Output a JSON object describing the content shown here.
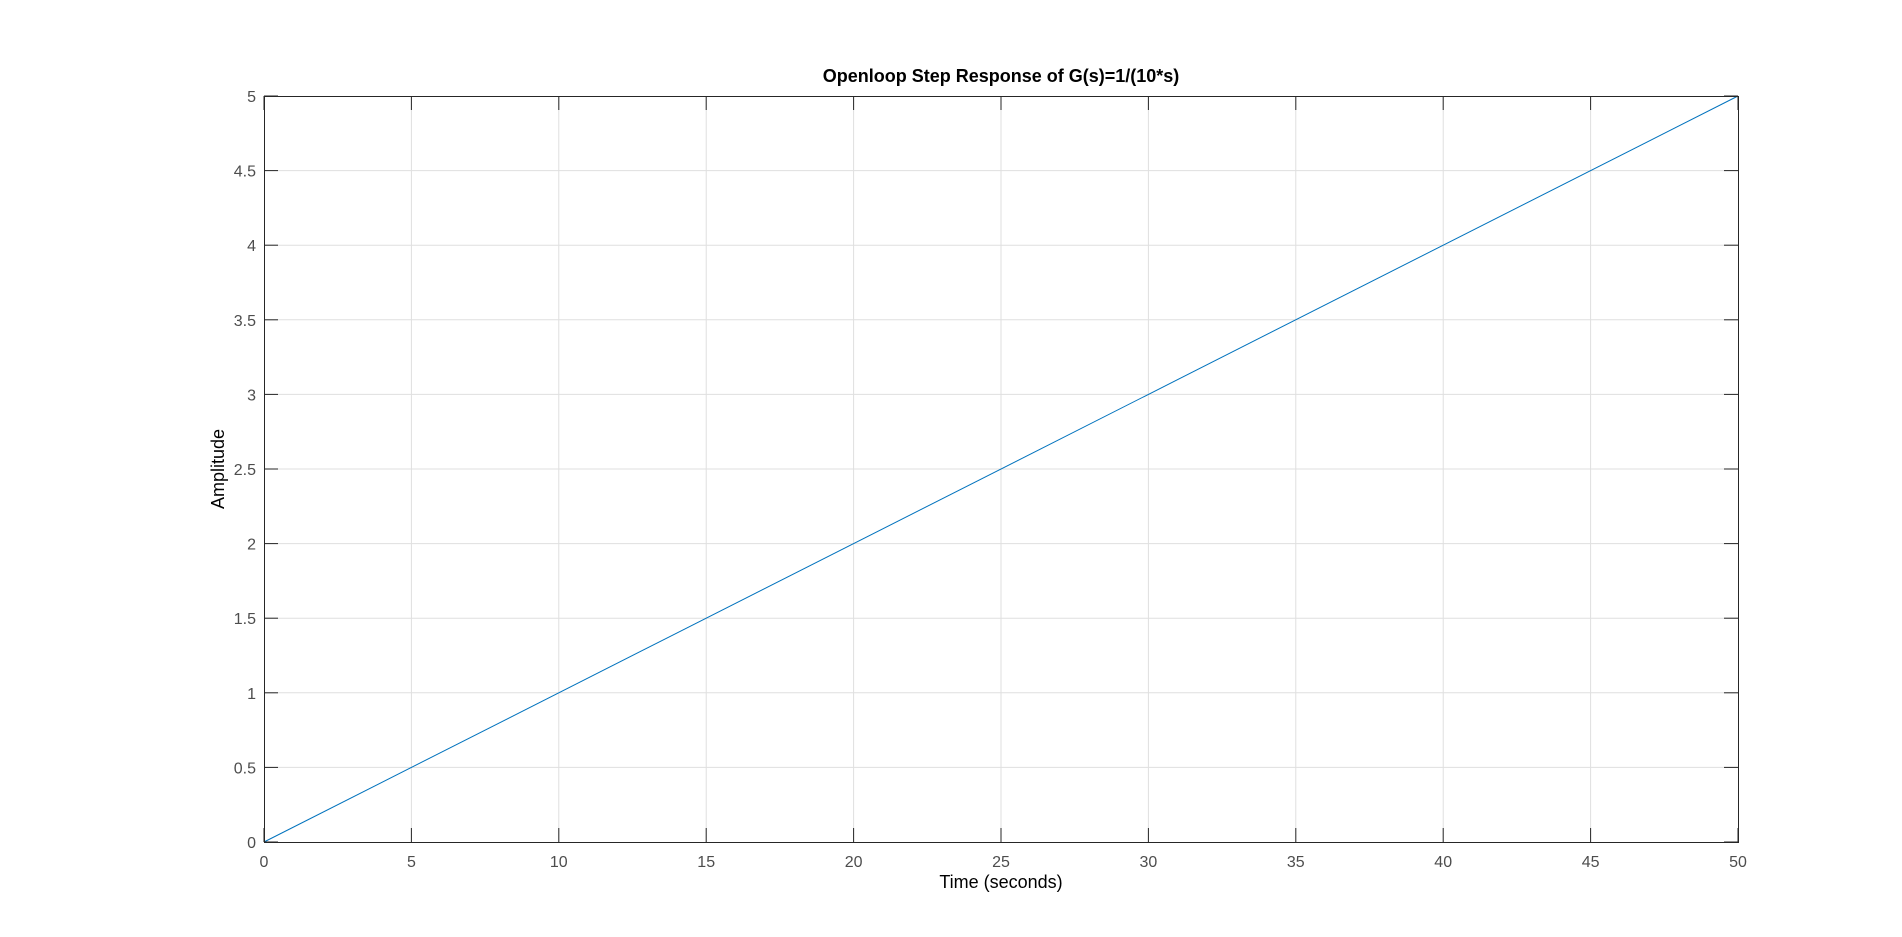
{
  "chart_data": {
    "type": "line",
    "title": "Openloop Step Response of G(s)=1/(10*s)",
    "xlabel": "Time (seconds)",
    "ylabel": "Amplitude",
    "xlim": [
      0,
      50
    ],
    "ylim": [
      0,
      5
    ],
    "xticks": [
      "0",
      "5",
      "10",
      "15",
      "20",
      "25",
      "30",
      "35",
      "40",
      "45",
      "50"
    ],
    "yticks": [
      "0",
      "0.5",
      "1",
      "1.5",
      "2",
      "2.5",
      "3",
      "3.5",
      "4",
      "4.5",
      "5"
    ],
    "grid": true,
    "series": [
      {
        "color": "#0072bd",
        "x": [
          0,
          50
        ],
        "y": [
          0,
          5
        ]
      }
    ],
    "colors": {
      "axis": "#262626",
      "grid": "#dfdfdf",
      "tick_text": "#4d4d4d"
    }
  }
}
